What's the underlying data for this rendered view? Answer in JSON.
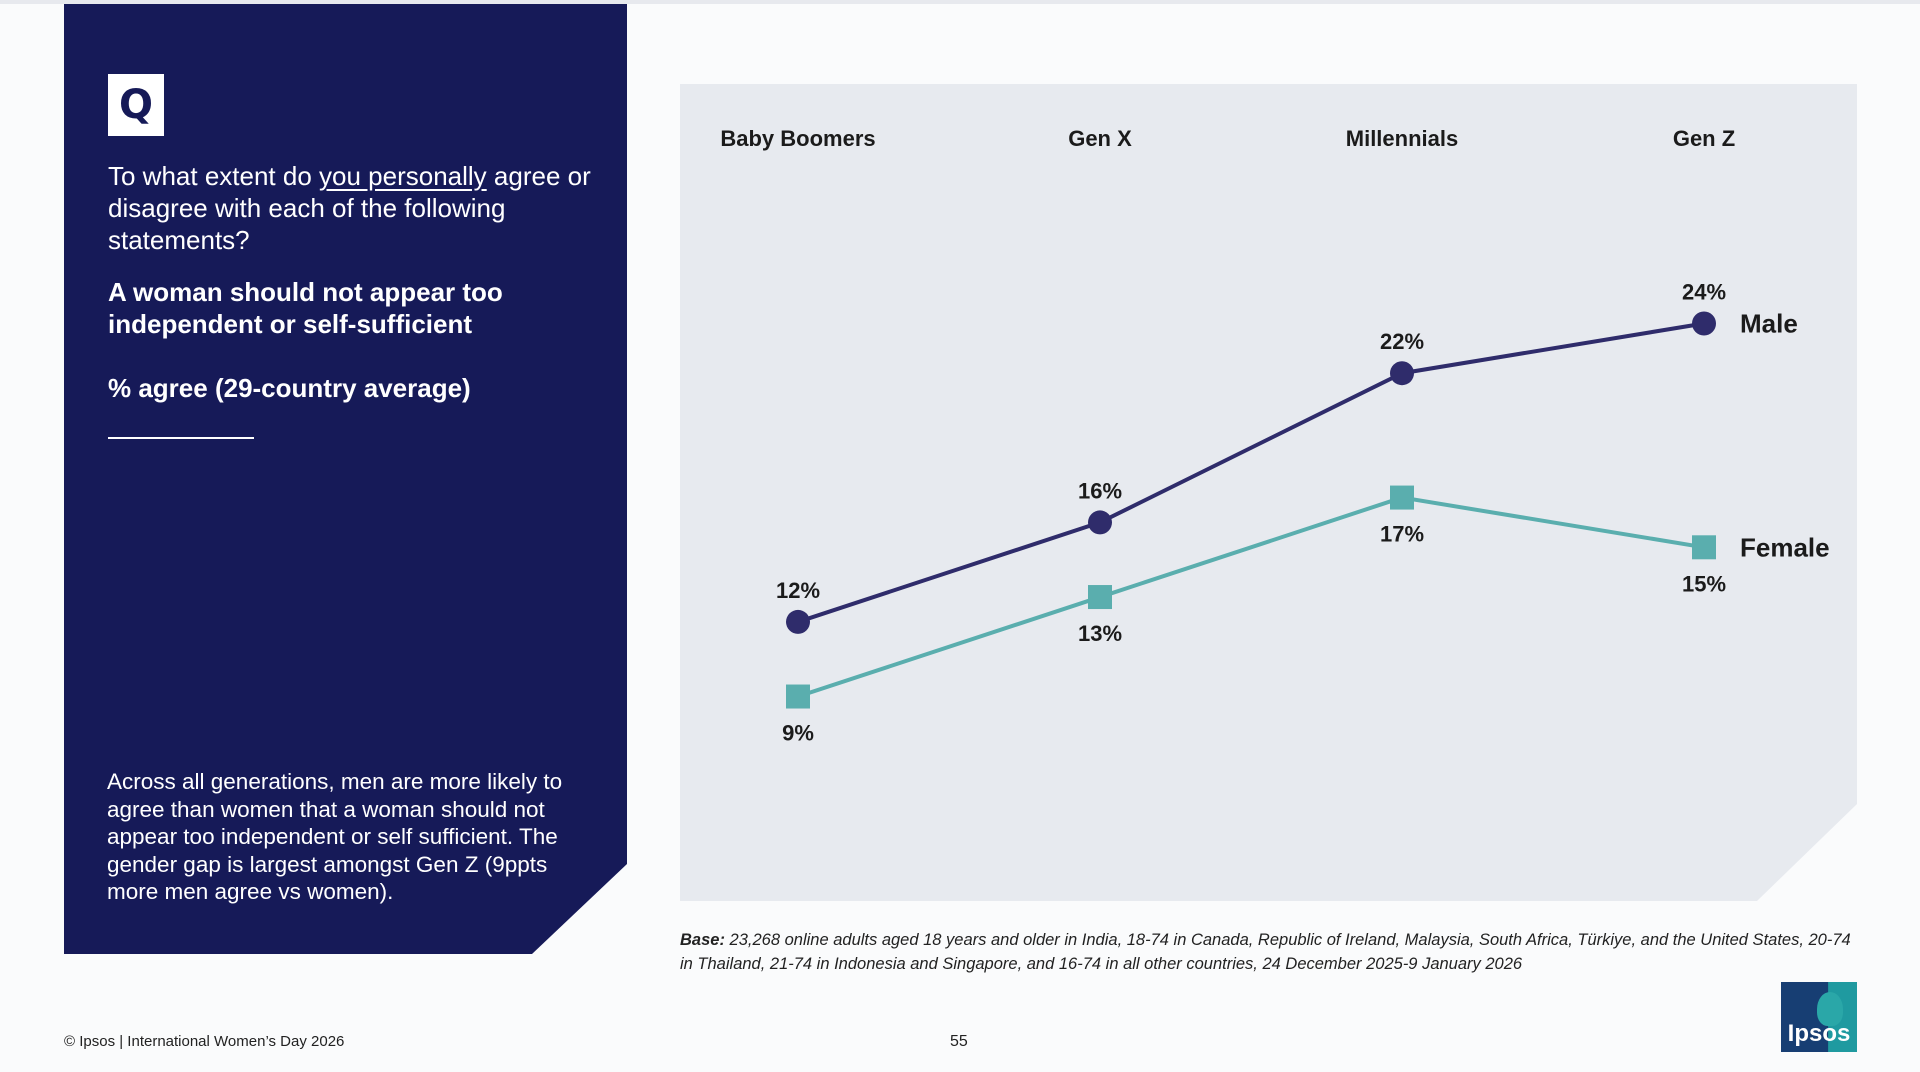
{
  "panel": {
    "badge": "Q",
    "question_part1": "To what extent do ",
    "question_underlined": "you personally",
    "question_part2": " agree or disagree with each of the following statements?",
    "statement": "A woman should not appear too independent or self-sufficient",
    "measure": "% agree (29-country average)",
    "summary": "Across all generations, men are more likely to agree than women that a woman should not appear too independent or self sufficient. The gender gap is largest amongst Gen Z (9ppts more men agree vs women)."
  },
  "chart_data": {
    "type": "line",
    "categories": [
      "Baby Boomers",
      "Gen X",
      "Millennials",
      "Gen Z"
    ],
    "series": [
      {
        "name": "Male",
        "values": [
          12,
          16,
          22,
          24
        ],
        "color": "#2f2c6b",
        "marker": "circle"
      },
      {
        "name": "Female",
        "values": [
          9,
          13,
          17,
          15
        ],
        "color": "#5aaeae",
        "marker": "square"
      }
    ],
    "value_labels": {
      "Male": [
        "12%",
        "16%",
        "22%",
        "24%"
      ],
      "Female": [
        "9%",
        "13%",
        "17%",
        "15%"
      ]
    },
    "title": "",
    "xlabel": "",
    "ylabel": "",
    "ylim": [
      5,
      28
    ],
    "grid": false,
    "legend": "labels at line ends"
  },
  "footer": {
    "base_label": "Base:",
    "base_text": " 23,268 online adults aged 18 years and older in India, 18-74 in Canada, Republic of Ireland, Malaysia, South Africa, Türkiye, and the United States, 20-74 in Thailand, 21-74 in Indonesia and Singapore, and 16-74 in all other countries, 24 December 2025-9 January 2026",
    "copyright": "© Ipsos | International Women’s Day 2026",
    "page_number": "55",
    "logo_text": "Ipsos"
  },
  "colors": {
    "panel_bg": "#161a58",
    "chart_bg": "#e7eaef",
    "male": "#2f2c6b",
    "female": "#5aaeae"
  }
}
